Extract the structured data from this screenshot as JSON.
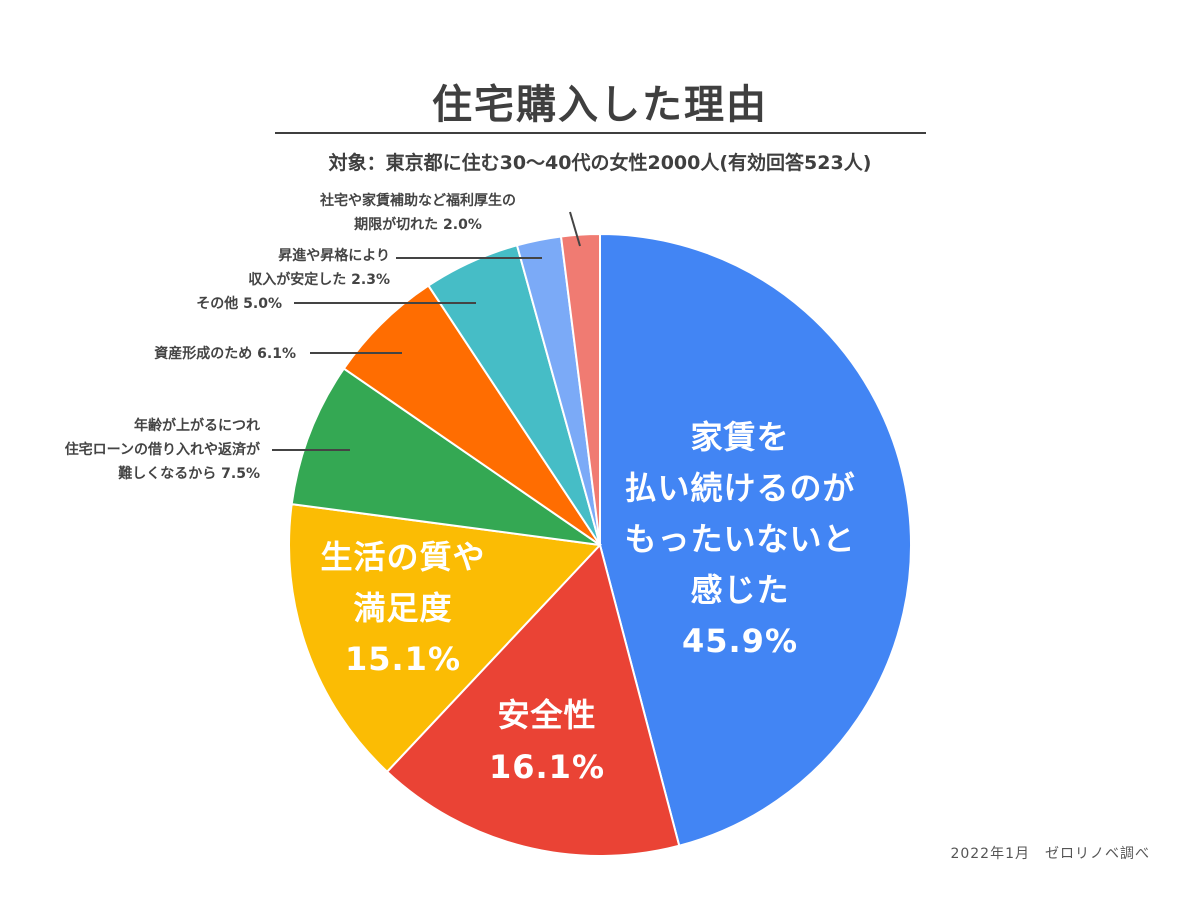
{
  "chart_data": {
    "type": "pie",
    "title": "住宅購入した理由",
    "subtitle": "対象：東京都に住む30〜40代の女性2000人(有効回答523人)",
    "source_note": "2022年1月　ゼロリノベ調べ",
    "slices": [
      {
        "label_lines": [
          "家賃を",
          "払い続けるのが",
          "もったいないと",
          "感じた",
          "45.9%"
        ],
        "value": 45.9,
        "color": "#4285f4",
        "label_position": "inside"
      },
      {
        "label_lines": [
          "安全性",
          "16.1%"
        ],
        "value": 16.1,
        "color": "#ea4335",
        "label_position": "inside"
      },
      {
        "label_lines": [
          "生活の質や",
          "満足度",
          "15.1%"
        ],
        "value": 15.1,
        "color": "#fbbc04",
        "label_position": "inside"
      },
      {
        "label_lines": [
          "年齢が上がるにつれ",
          "住宅ローンの借り入れや返済が",
          "難しくなるから 7.5%"
        ],
        "value": 7.5,
        "color": "#34a853",
        "label_position": "outside"
      },
      {
        "label_lines": [
          "資産形成のため 6.1%"
        ],
        "value": 6.1,
        "color": "#ff6d01",
        "label_position": "outside"
      },
      {
        "label_lines": [
          "その他 5.0%"
        ],
        "value": 5.0,
        "color": "#46bdc6",
        "label_position": "outside"
      },
      {
        "label_lines": [
          "昇進や昇格により",
          "収入が安定した 2.3%"
        ],
        "value": 2.3,
        "color": "#7baaf7",
        "label_position": "outside"
      },
      {
        "label_lines": [
          "社宅や家賃補助など福利厚生の",
          "期限が切れた 2.0%"
        ],
        "value": 2.0,
        "color": "#f07b72",
        "label_position": "outside"
      }
    ]
  }
}
